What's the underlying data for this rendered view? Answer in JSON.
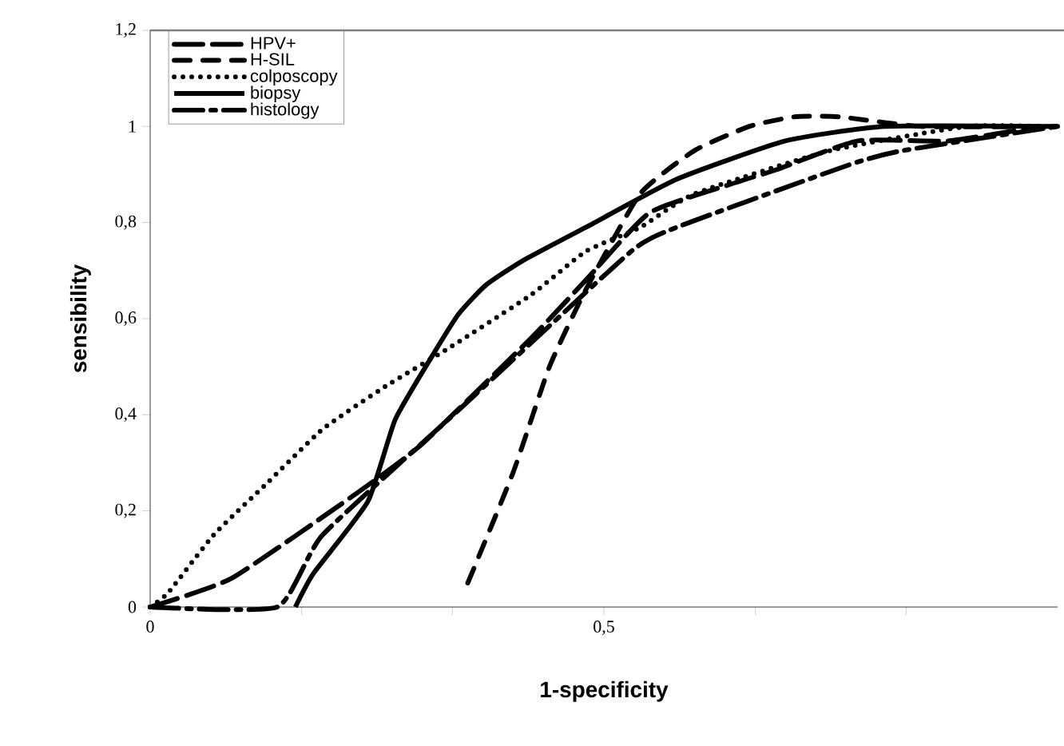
{
  "chart_data": {
    "type": "line",
    "xlabel": "1-specificity",
    "ylabel": "sensibility",
    "xlim": [
      0,
      1
    ],
    "ylim": [
      0,
      1.2
    ],
    "xticks": [
      {
        "value": 0,
        "label": "0"
      },
      {
        "value": 0.167,
        "label": null
      },
      {
        "value": 0.333,
        "label": null
      },
      {
        "value": 0.5,
        "label": "0,5"
      },
      {
        "value": 0.667,
        "label": null
      },
      {
        "value": 0.833,
        "label": null
      }
    ],
    "yticks": [
      {
        "value": 0,
        "label": "0"
      },
      {
        "value": 0.2,
        "label": "0,2"
      },
      {
        "value": 0.4,
        "label": "0,4"
      },
      {
        "value": 0.6,
        "label": "0,6"
      },
      {
        "value": 0.8,
        "label": "0,8"
      },
      {
        "value": 1,
        "label": "1"
      },
      {
        "value": 1.2,
        "label": "1,2"
      }
    ],
    "legend": "top left",
    "grid": false,
    "series": [
      {
        "name": "HPV+",
        "color": "#000000",
        "line_style": "dashed",
        "x": [
          0,
          0.09,
          0.23,
          0.3,
          0.42,
          0.48,
          0.55,
          0.64,
          0.69,
          0.78,
          0.88,
          0.98
        ],
        "values": [
          0,
          0.06,
          0.24,
          0.34,
          0.56,
          0.68,
          0.82,
          0.88,
          0.91,
          0.97,
          0.97,
          1
        ]
      },
      {
        "name": "H-SIL",
        "color": "#000000",
        "line_style": "dashed",
        "x": [
          0.35,
          0.4,
          0.44,
          0.48,
          0.54,
          0.6,
          0.66,
          0.71,
          0.76,
          0.85,
          1
        ],
        "values": [
          0.05,
          0.28,
          0.5,
          0.66,
          0.86,
          0.95,
          1.0,
          1.02,
          1.02,
          1.0,
          1.0
        ]
      },
      {
        "name": "colposcopy",
        "color": "#000000",
        "line_style": "dotted",
        "x": [
          0,
          0.02,
          0.07,
          0.13,
          0.19,
          0.26,
          0.33,
          0.42,
          0.48,
          0.54,
          0.6,
          0.75,
          0.9,
          0.99
        ],
        "values": [
          0,
          0.03,
          0.15,
          0.26,
          0.37,
          0.46,
          0.54,
          0.65,
          0.74,
          0.79,
          0.86,
          0.95,
          1.0,
          1.0
        ]
      },
      {
        "name": "biopsy",
        "color": "#000000",
        "line_style": "solid",
        "x": [
          0.16,
          0.18,
          0.24,
          0.27,
          0.31,
          0.34,
          0.37,
          0.41,
          0.48,
          0.58,
          0.7,
          0.81,
          1
        ],
        "values": [
          0,
          0.07,
          0.22,
          0.39,
          0.52,
          0.61,
          0.67,
          0.72,
          0.79,
          0.89,
          0.97,
          1.0,
          1.0
        ]
      },
      {
        "name": "histology",
        "color": "#000000",
        "line_style": "dashed",
        "x": [
          0,
          0.14,
          0.19,
          0.34,
          0.38,
          0.53,
          0.58,
          0.77,
          0.83,
          1
        ],
        "values": [
          0,
          0,
          0.15,
          0.41,
          0.48,
          0.74,
          0.79,
          0.92,
          0.95,
          1
        ]
      }
    ]
  }
}
